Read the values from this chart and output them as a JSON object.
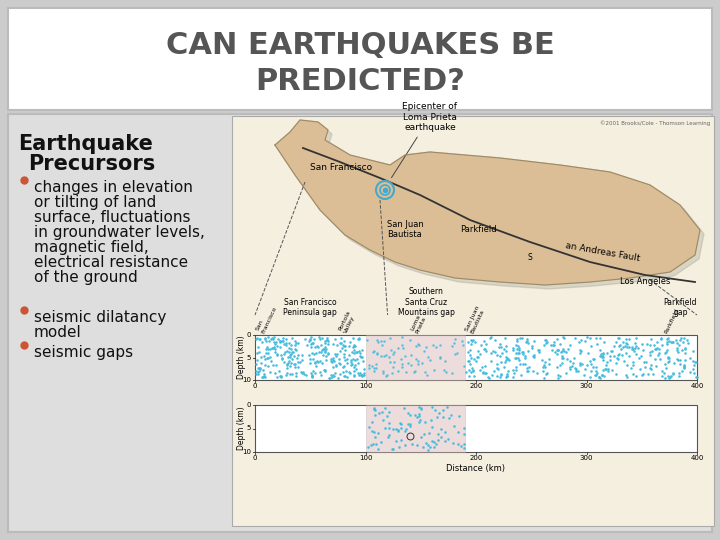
{
  "title_line1": "CAN EARTHQUAKES BE",
  "title_line2": "PREDICTED?",
  "title_fontsize": 22,
  "title_color": "#555555",
  "bg_color": "#CCCCCC",
  "title_bg_color": "#FFFFFF",
  "content_bg_color": "#DEDEDE",
  "heading_line1": "Earthquake",
  "heading_line2": "  Precursors",
  "heading_fontsize": 15,
  "heading_color": "#111111",
  "bullet_color": "#CC5533",
  "bullet_fontsize": 11,
  "bullet1": "changes in elevation\nor tilting of land\nsurface, fluctuations\nin groundwater levels,\nmagnetic field,\nelectrical resistance\nof the ground",
  "bullet2": "seismic dilatancy\nmodel",
  "bullet3": "seismic gaps",
  "text_color": "#111111",
  "map_bg": "#F5EFE0",
  "ca_color": "#DBBE96",
  "ca_edge": "#9B8A6A",
  "fault_color": "#333333",
  "dot_color": "#44BBDD",
  "pink_color": "#DDBBBB",
  "copyright": "©2001 Brooks/Cole - Thomson Learning"
}
